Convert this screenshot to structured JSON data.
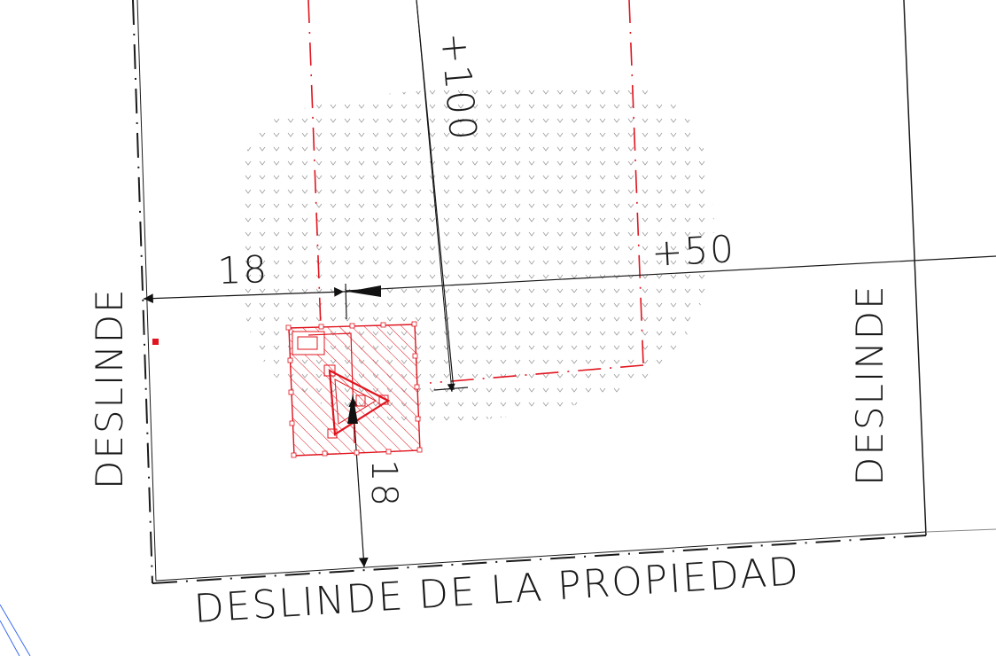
{
  "labels": {
    "left_boundary": "DESLINDE",
    "right_boundary": "DESLINDE",
    "bottom_boundary": "DESLINDE DE LA PROPIEDAD"
  },
  "dimensions": {
    "left_offset": "18",
    "bottom_offset": "18",
    "level_top": "+100",
    "level_right": "+50"
  },
  "colors": {
    "ink": "#1a1a1a",
    "red": "#e0141e",
    "hatch_gray": "#8a8a8a",
    "blue": "#3c6cf0"
  }
}
